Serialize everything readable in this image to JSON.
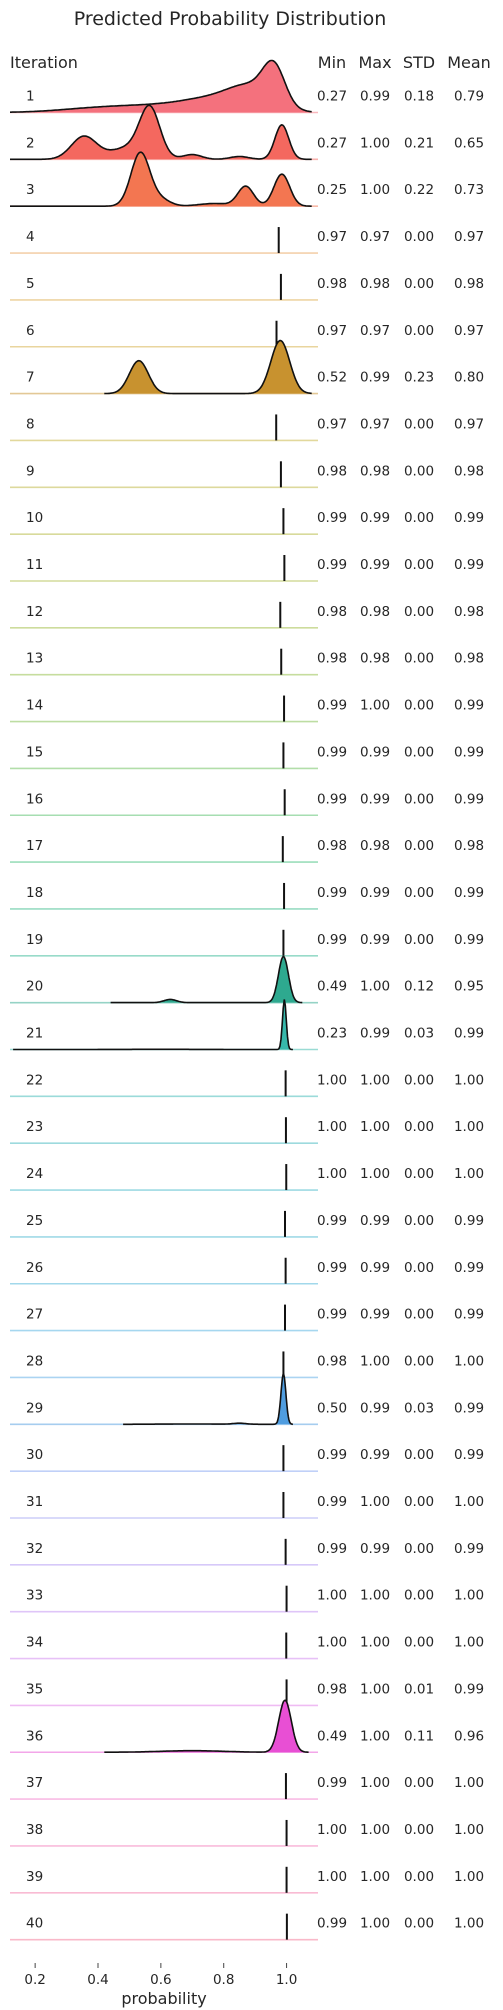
{
  "chart_data": {
    "type": "ridgeline",
    "title": "Predicted Probability Distribution",
    "row_header": "Iteration",
    "stat_headers": [
      "Min",
      "Max",
      "STD",
      "Mean"
    ],
    "xlabel": "probability",
    "xlim": [
      0.12,
      1.1
    ],
    "xticks": [
      0.2,
      0.4,
      0.6,
      0.8,
      1.0
    ],
    "xtick_labels": [
      "0.2",
      "0.4",
      "0.6",
      "0.8",
      "1.0"
    ],
    "rows": [
      {
        "label": "1",
        "min": "0.27",
        "max": "0.99",
        "std": "0.18",
        "mean": "0.79",
        "color": "#f4717d"
      },
      {
        "label": "2",
        "min": "0.27",
        "max": "1.00",
        "std": "0.21",
        "mean": "0.65",
        "color": "#f4685f"
      },
      {
        "label": "3",
        "min": "0.25",
        "max": "1.00",
        "std": "0.22",
        "mean": "0.73",
        "color": "#f37651"
      },
      {
        "label": "4",
        "min": "0.97",
        "max": "0.97",
        "std": "0.00",
        "mean": "0.97",
        "color": "#e9a35a"
      },
      {
        "label": "5",
        "min": "0.98",
        "max": "0.98",
        "std": "0.00",
        "mean": "0.98",
        "color": "#ddaa4a"
      },
      {
        "label": "6",
        "min": "0.97",
        "max": "0.97",
        "std": "0.00",
        "mean": "0.97",
        "color": "#d5ad3f"
      },
      {
        "label": "7",
        "min": "0.52",
        "max": "0.99",
        "std": "0.23",
        "mean": "0.80",
        "color": "#c8922f"
      },
      {
        "label": "8",
        "min": "0.97",
        "max": "0.97",
        "std": "0.00",
        "mean": "0.97",
        "color": "#c6b33c"
      },
      {
        "label": "9",
        "min": "0.98",
        "max": "0.98",
        "std": "0.00",
        "mean": "0.98",
        "color": "#bcb53b"
      },
      {
        "label": "10",
        "min": "0.99",
        "max": "0.99",
        "std": "0.00",
        "mean": "0.99",
        "color": "#b3b739"
      },
      {
        "label": "11",
        "min": "0.99",
        "max": "0.99",
        "std": "0.00",
        "mean": "0.99",
        "color": "#a8b838"
      },
      {
        "label": "12",
        "min": "0.98",
        "max": "0.98",
        "std": "0.00",
        "mean": "0.98",
        "color": "#9cba3b"
      },
      {
        "label": "13",
        "min": "0.98",
        "max": "0.98",
        "std": "0.00",
        "mean": "0.98",
        "color": "#8fbc40"
      },
      {
        "label": "14",
        "min": "0.99",
        "max": "1.00",
        "std": "0.00",
        "mean": "0.99",
        "color": "#7dbd48"
      },
      {
        "label": "15",
        "min": "0.99",
        "max": "0.99",
        "std": "0.00",
        "mean": "0.99",
        "color": "#68be55"
      },
      {
        "label": "16",
        "min": "0.99",
        "max": "0.99",
        "std": "0.00",
        "mean": "0.99",
        "color": "#4fbe66"
      },
      {
        "label": "17",
        "min": "0.98",
        "max": "0.98",
        "std": "0.00",
        "mean": "0.98",
        "color": "#3bbd78"
      },
      {
        "label": "18",
        "min": "0.99",
        "max": "0.99",
        "std": "0.00",
        "mean": "0.99",
        "color": "#34bb89"
      },
      {
        "label": "19",
        "min": "0.99",
        "max": "0.99",
        "std": "0.00",
        "mean": "0.99",
        "color": "#34b995"
      },
      {
        "label": "20",
        "min": "0.49",
        "max": "1.00",
        "std": "0.12",
        "mean": "0.95",
        "color": "#2ea98f"
      },
      {
        "label": "21",
        "min": "0.23",
        "max": "0.99",
        "std": "0.03",
        "mean": "0.99",
        "color": "#37b8ab"
      },
      {
        "label": "22",
        "min": "1.00",
        "max": "1.00",
        "std": "0.00",
        "mean": "1.00",
        "color": "#3ab8b6"
      },
      {
        "label": "23",
        "min": "1.00",
        "max": "1.00",
        "std": "0.00",
        "mean": "1.00",
        "color": "#3db7bf"
      },
      {
        "label": "24",
        "min": "1.00",
        "max": "1.00",
        "std": "0.00",
        "mean": "1.00",
        "color": "#40b6c7"
      },
      {
        "label": "25",
        "min": "0.99",
        "max": "0.99",
        "std": "0.00",
        "mean": "0.99",
        "color": "#43b5cf"
      },
      {
        "label": "26",
        "min": "0.99",
        "max": "0.99",
        "std": "0.00",
        "mean": "0.99",
        "color": "#48b3d8"
      },
      {
        "label": "27",
        "min": "0.99",
        "max": "0.99",
        "std": "0.00",
        "mean": "0.99",
        "color": "#4fb0e0"
      },
      {
        "label": "28",
        "min": "0.98",
        "max": "1.00",
        "std": "0.00",
        "mean": "1.00",
        "color": "#5aabe7"
      },
      {
        "label": "29",
        "min": "0.50",
        "max": "0.99",
        "std": "0.03",
        "mean": "0.99",
        "color": "#4f9de0"
      },
      {
        "label": "30",
        "min": "0.99",
        "max": "0.99",
        "std": "0.00",
        "mean": "0.99",
        "color": "#82a3f2"
      },
      {
        "label": "31",
        "min": "0.99",
        "max": "1.00",
        "std": "0.00",
        "mean": "1.00",
        "color": "#9a9cf4"
      },
      {
        "label": "32",
        "min": "0.99",
        "max": "0.99",
        "std": "0.00",
        "mean": "0.99",
        "color": "#ae95f4"
      },
      {
        "label": "33",
        "min": "1.00",
        "max": "1.00",
        "std": "0.00",
        "mean": "1.00",
        "color": "#c08df3"
      },
      {
        "label": "34",
        "min": "1.00",
        "max": "1.00",
        "std": "0.00",
        "mean": "1.00",
        "color": "#d185f0"
      },
      {
        "label": "35",
        "min": "0.98",
        "max": "1.00",
        "std": "0.01",
        "mean": "0.99",
        "color": "#e07be9"
      },
      {
        "label": "36",
        "min": "0.49",
        "max": "1.00",
        "std": "0.11",
        "mean": "0.96",
        "color": "#e84fd4"
      },
      {
        "label": "37",
        "min": "0.99",
        "max": "1.00",
        "std": "0.00",
        "mean": "1.00",
        "color": "#f27bcb"
      },
      {
        "label": "38",
        "min": "1.00",
        "max": "1.00",
        "std": "0.00",
        "mean": "1.00",
        "color": "#f47ab9"
      },
      {
        "label": "39",
        "min": "1.00",
        "max": "1.00",
        "std": "0.00",
        "mean": "1.00",
        "color": "#f479a8"
      },
      {
        "label": "40",
        "min": "0.99",
        "max": "1.00",
        "std": "0.00",
        "mean": "1.00",
        "color": "#f47694"
      }
    ]
  }
}
